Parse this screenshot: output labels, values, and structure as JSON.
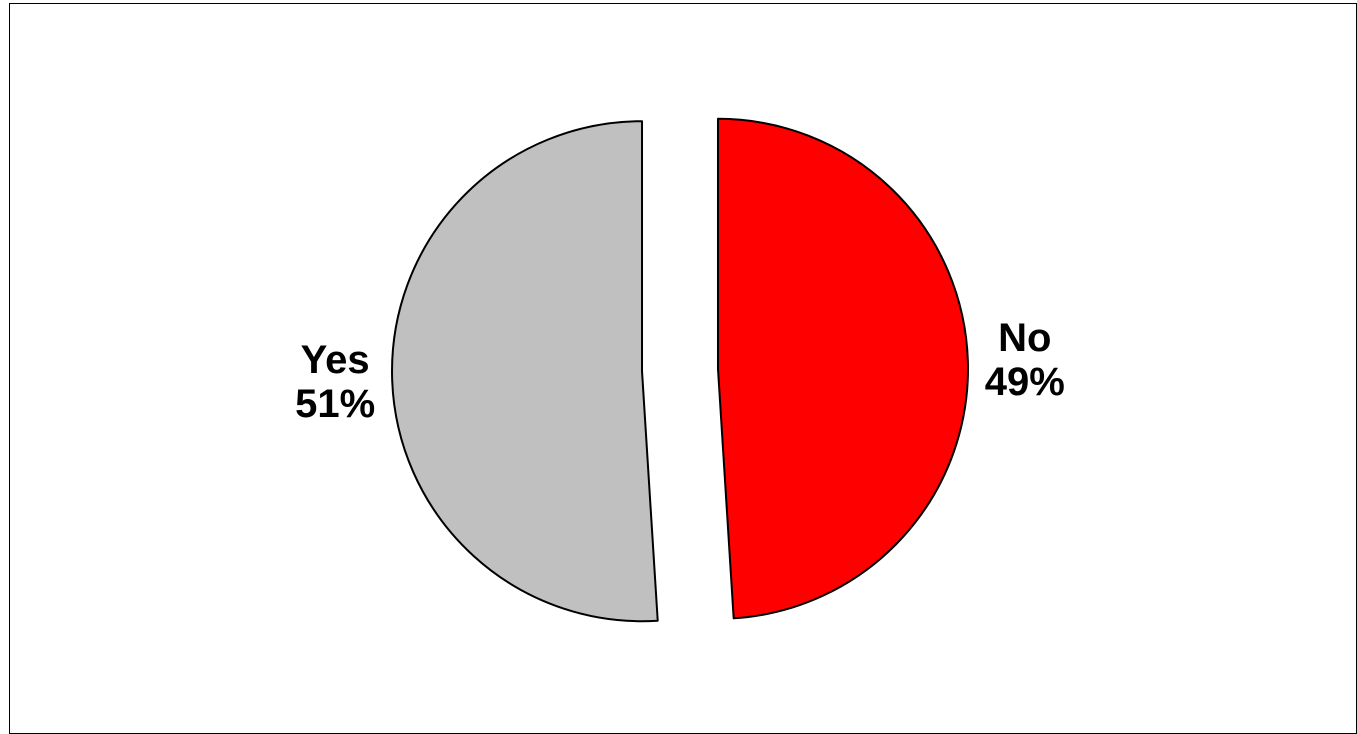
{
  "chart_data": {
    "type": "pie",
    "title": "",
    "slices": [
      {
        "label": "No",
        "value": 49,
        "percent_label": "49%",
        "color": "#ff0000"
      },
      {
        "label": "Yes",
        "value": 51,
        "percent_label": "51%",
        "color": "#c0c0c0"
      }
    ],
    "start_angle_deg": 0,
    "direction": "clockwise",
    "exploded": true,
    "legend": "none"
  }
}
